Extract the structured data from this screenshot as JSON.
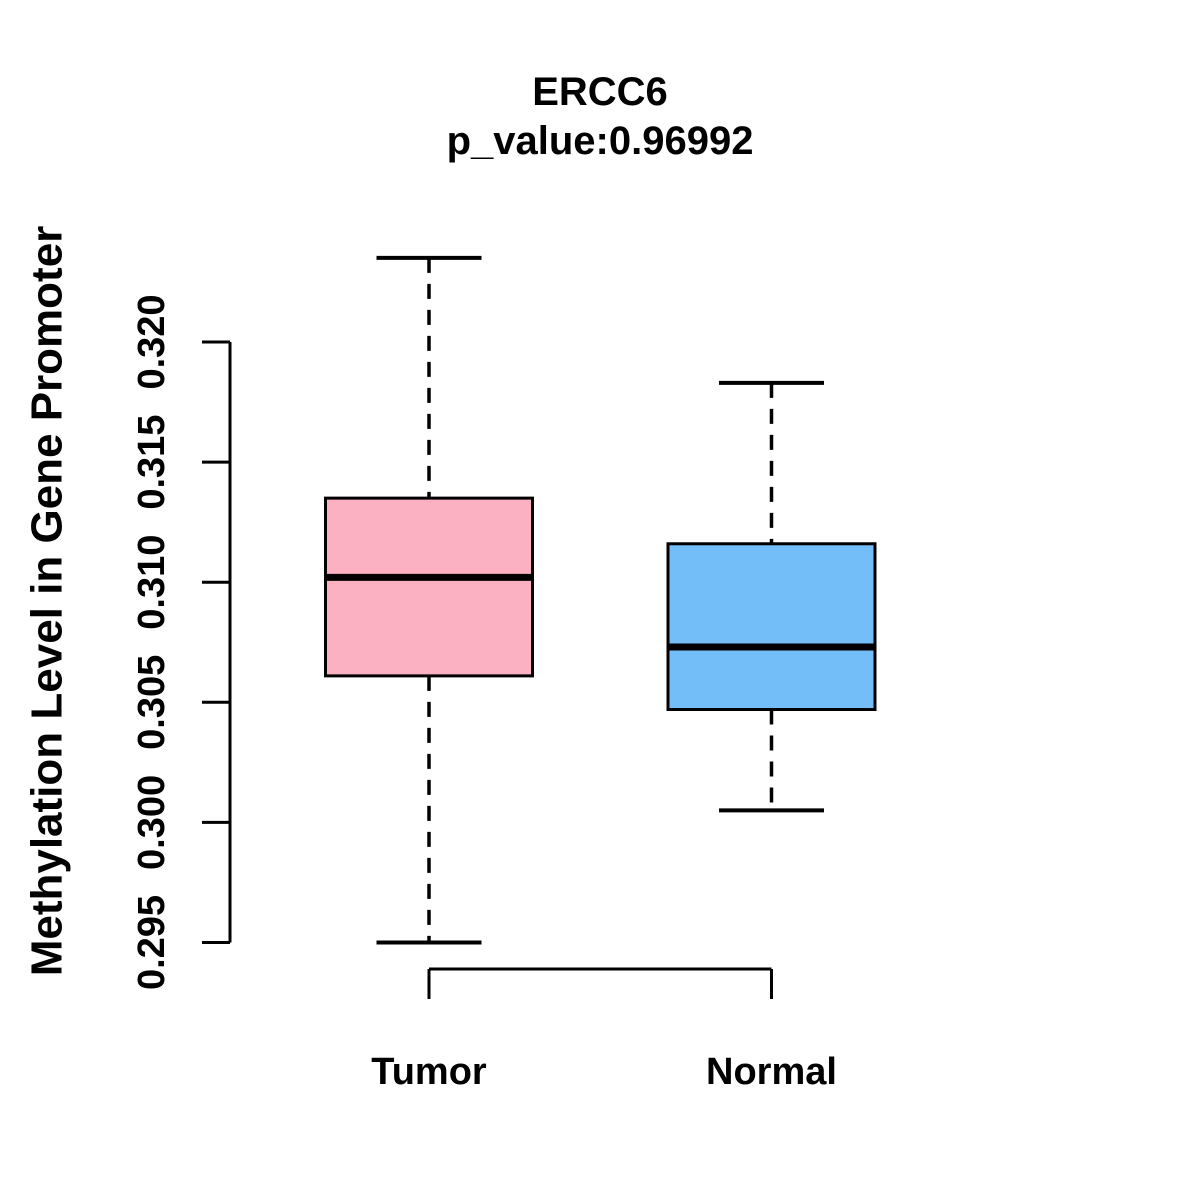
{
  "title": {
    "line1": "ERCC6",
    "line2": "p_value:0.96992"
  },
  "y_axis": {
    "label": "Methylation Level in Gene Promoter",
    "ticks": [
      "0.295",
      "0.300",
      "0.305",
      "0.310",
      "0.315",
      "0.320"
    ]
  },
  "x_axis": {
    "labels": [
      "Tumor",
      "Normal"
    ]
  },
  "chart_data": {
    "type": "boxplot",
    "title": "ERCC6",
    "subtitle": "p_value:0.96992",
    "p_value": 0.96992,
    "ylabel": "Methylation Level in Gene Promoter",
    "categories": [
      "Tumor",
      "Normal"
    ],
    "ylim": [
      0.295,
      0.32
    ],
    "yticks": [
      0.295,
      0.3,
      0.305,
      0.31,
      0.315,
      0.32
    ],
    "grid": false,
    "legend": "none",
    "whisker_style": "dashed",
    "series": [
      {
        "name": "Tumor",
        "fill_color": "#FCB1C3",
        "whisker_low": 0.295,
        "q1": 0.3061,
        "median": 0.3102,
        "q3": 0.3135,
        "whisker_high": 0.3235
      },
      {
        "name": "Normal",
        "fill_color": "#73BEF8",
        "whisker_low": 0.3005,
        "q1": 0.3047,
        "median": 0.3073,
        "q3": 0.3116,
        "whisker_high": 0.3183
      }
    ]
  },
  "colors": {
    "line": "#000000",
    "background": "#FFFFFF",
    "tumor_fill": "#FCB1C3",
    "normal_fill": "#73BEF8"
  }
}
